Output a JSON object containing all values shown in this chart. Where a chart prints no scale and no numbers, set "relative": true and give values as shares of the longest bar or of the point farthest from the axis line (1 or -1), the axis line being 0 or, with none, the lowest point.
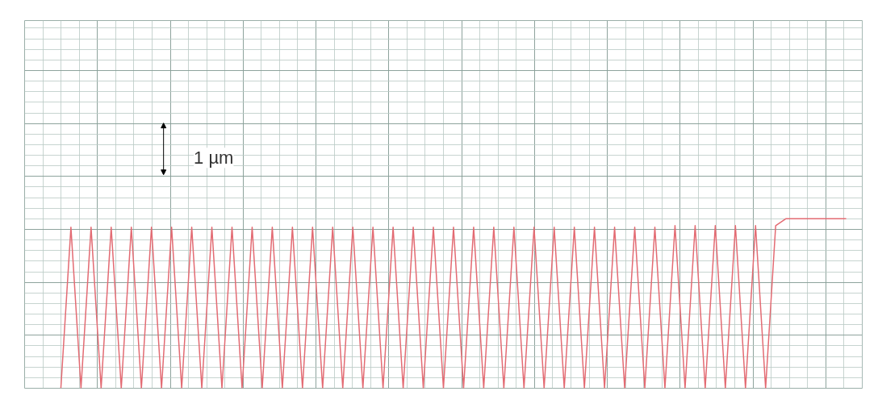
{
  "chart_data": {
    "type": "line",
    "relative": true,
    "grid": true,
    "marker": "none",
    "line_style": "solid",
    "categories": [
      null,
      null,
      null,
      null,
      null,
      null,
      null,
      null,
      null,
      null,
      null,
      null,
      null,
      null,
      null,
      null,
      null,
      null,
      null,
      null,
      null,
      null,
      null,
      null,
      null,
      null,
      null,
      null,
      null,
      null,
      null,
      null,
      null,
      null,
      null,
      null,
      null,
      null,
      null,
      null,
      null,
      null,
      null,
      null,
      null,
      null,
      null,
      null,
      null,
      null,
      null,
      null,
      null,
      null,
      null,
      null,
      null,
      null,
      null,
      null,
      null,
      null,
      null,
      null,
      null,
      null,
      null,
      null,
      null,
      null,
      null,
      null,
      null,
      null,
      null,
      null,
      null,
      null,
      null
    ],
    "series": [
      {
        "color": "#e36b73",
        "values": [
          0,
          0.95,
          0,
          0.95,
          0,
          0.95,
          0,
          0.95,
          0,
          0.95,
          0,
          0.95,
          0,
          0.95,
          0,
          0.95,
          0,
          0.95,
          0,
          0.95,
          0,
          0.95,
          0,
          0.95,
          0,
          0.95,
          0,
          0.95,
          0,
          0.95,
          0,
          0.95,
          0,
          0.95,
          0,
          0.95,
          0,
          0.95,
          0,
          0.95,
          0,
          0.95,
          0,
          0.95,
          0,
          0.95,
          0,
          0.95,
          0,
          0.95,
          0,
          0.95,
          0,
          0.95,
          0,
          0.95,
          0,
          0.95,
          0,
          0.95,
          0,
          0.96,
          0,
          0.96,
          0,
          0.96,
          0,
          0.96,
          0,
          0.96,
          0,
          0.96,
          1,
          1,
          1,
          1,
          1,
          1,
          1
        ]
      }
    ],
    "annotations": [
      "1 µm"
    ]
  }
}
